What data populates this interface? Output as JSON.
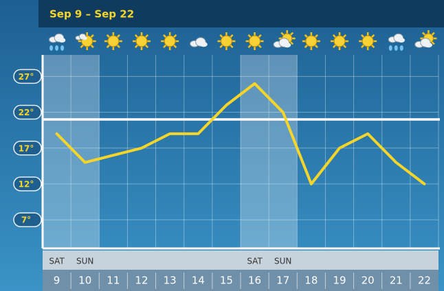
{
  "chart_data": {
    "type": "line",
    "title": "Sep 9 – Sep 22",
    "categories": [
      "9",
      "10",
      "11",
      "12",
      "13",
      "14",
      "15",
      "16",
      "17",
      "18",
      "19",
      "20",
      "21",
      "22"
    ],
    "weekdays": [
      "SAT",
      "SUN",
      null,
      null,
      null,
      null,
      null,
      "SAT",
      "SUN",
      null,
      null,
      null,
      null,
      null
    ],
    "values": [
      19,
      15,
      16,
      17,
      19,
      19,
      23,
      26,
      22,
      12,
      17,
      19,
      15,
      12
    ],
    "color": "#f5d52a",
    "reference_line": 21,
    "ylim": [
      3,
      30
    ],
    "yticks": [
      {
        "value": 27,
        "label": "27°"
      },
      {
        "value": 22,
        "label": "22°"
      },
      {
        "value": 17,
        "label": "17°"
      },
      {
        "value": 12,
        "label": "12°"
      },
      {
        "value": 7,
        "label": "7°"
      }
    ],
    "grid": true
  }
}
